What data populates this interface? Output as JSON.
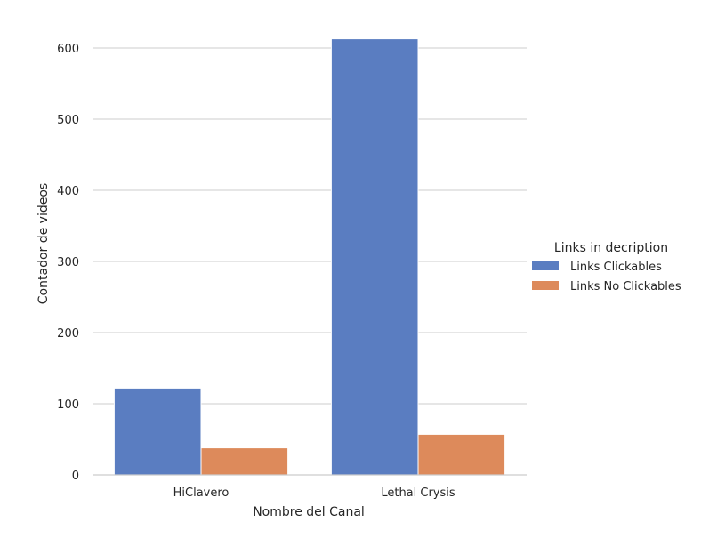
{
  "chart_data": {
    "type": "bar",
    "title": "",
    "xlabel": "Nombre del Canal",
    "ylabel": "Contador de videos",
    "categories": [
      "HiClavero",
      "Lethal Crysis"
    ],
    "series": [
      {
        "name": "Links Clickables",
        "values": [
          122,
          613
        ],
        "color": "#5a7dc1"
      },
      {
        "name": "Links No Clickables",
        "values": [
          38,
          57
        ],
        "color": "#dd8a5b"
      }
    ],
    "ylim": [
      0,
      630
    ],
    "yticks": [
      0,
      100,
      200,
      300,
      400,
      500,
      600
    ],
    "grid": true,
    "legend": {
      "title": "Links in decription",
      "placement": "right"
    }
  }
}
